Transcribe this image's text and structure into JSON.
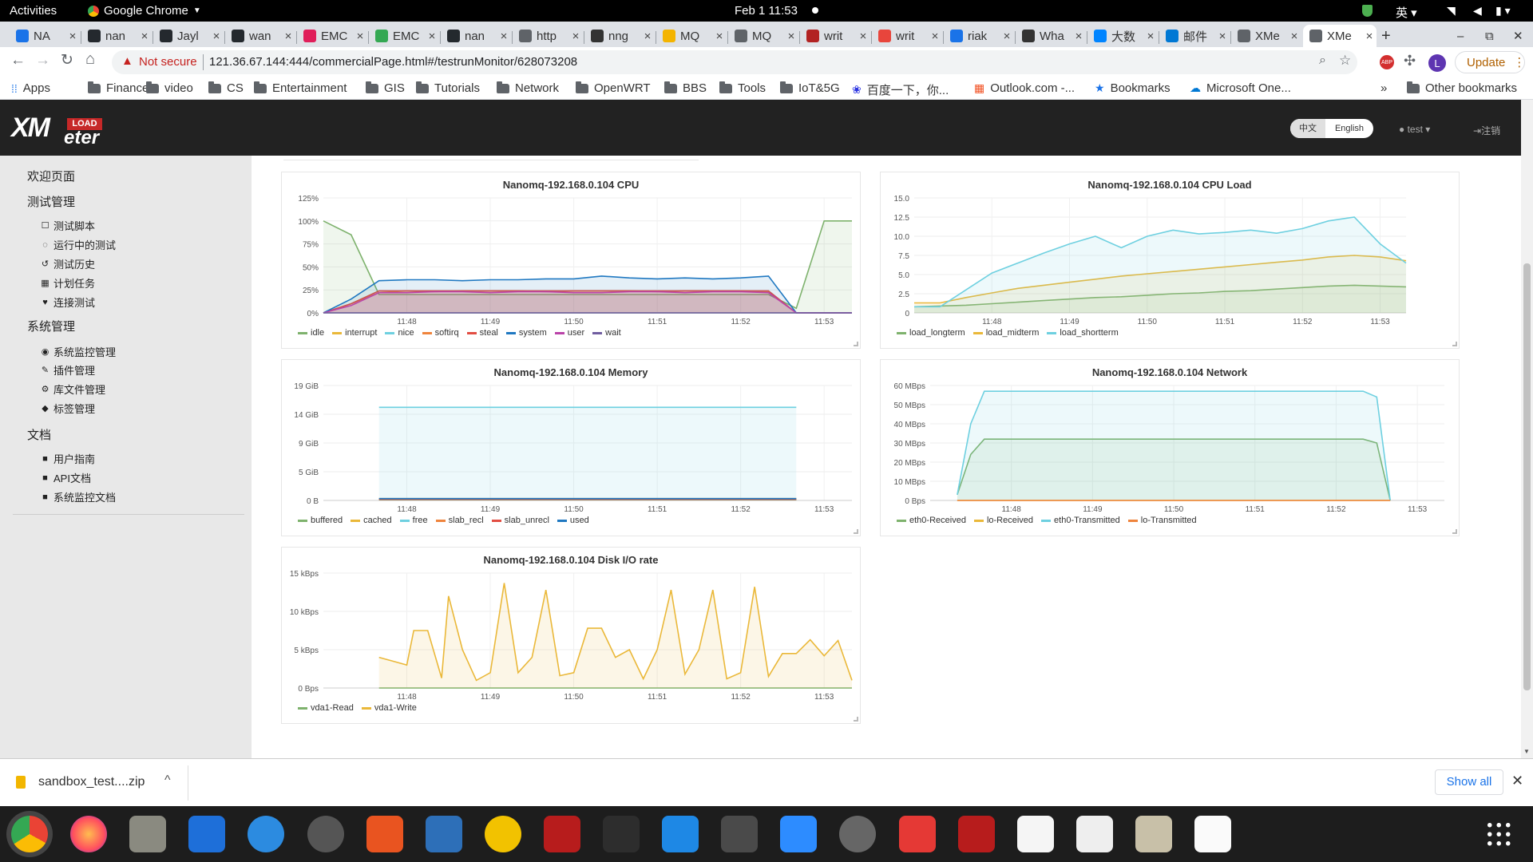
{
  "os": {
    "activities": "Activities",
    "app": "Google Chrome",
    "clock": "Feb 1  11:53",
    "lang": "英"
  },
  "tabs": [
    "NA",
    "nan",
    "Jayl",
    "wan",
    "EMC",
    "EMC",
    "nan",
    "http",
    "nng",
    "MQ",
    "MQ",
    "writ",
    "writ",
    "riak",
    "Wha",
    "大数",
    "邮件",
    "XMe",
    "XMe"
  ],
  "tab_favicon_colors": [
    "#1a73e8",
    "#24292e",
    "#24292e",
    "#24292e",
    "#e01e5a",
    "#34a853",
    "#24292e",
    "#5f6368",
    "#333",
    "#f4b400",
    "#5f6368",
    "#b22222",
    "#e8453c",
    "#1a73e8",
    "#333",
    "#0084ff",
    "#0078d4",
    "#5f6368",
    "#5f6368"
  ],
  "address": {
    "warning": "Not secure",
    "url": "121.36.67.144:444/commercialPage.html#/testrunMonitor/628073208",
    "update": "Update",
    "profile": "L"
  },
  "bookmarks": [
    {
      "label": "Apps",
      "icon": "apps-grid-icon"
    },
    {
      "label": "Finance",
      "icon": "folder-icon"
    },
    {
      "label": "video",
      "icon": "folder-icon"
    },
    {
      "label": "CS",
      "icon": "folder-icon"
    },
    {
      "label": "Entertainment",
      "icon": "folder-icon"
    },
    {
      "label": "GIS",
      "icon": "folder-icon"
    },
    {
      "label": "Tutorials",
      "icon": "folder-icon"
    },
    {
      "label": "Network",
      "icon": "folder-icon"
    },
    {
      "label": "OpenWRT",
      "icon": "folder-icon"
    },
    {
      "label": "BBS",
      "icon": "folder-icon"
    },
    {
      "label": "Tools",
      "icon": "folder-icon"
    },
    {
      "label": "IoT&5G",
      "icon": "folder-icon"
    },
    {
      "label": "百度一下，你...",
      "icon": "baidu-icon"
    },
    {
      "label": "Outlook.com -...",
      "icon": "microsoft-icon"
    },
    {
      "label": "Bookmarks",
      "icon": "star-icon"
    },
    {
      "label": "Microsoft One...",
      "icon": "onedrive-icon"
    }
  ],
  "other_bookmarks": "Other bookmarks",
  "header": {
    "logo_top": "LOAD",
    "logo_x": "XM",
    "logo_bottom": "eter",
    "lang_cn": "中文",
    "lang_en": "English",
    "user": "test",
    "logout": "注销"
  },
  "sidebar": [
    {
      "type": "h",
      "label": "欢迎页面"
    },
    {
      "type": "h",
      "label": "测试管理"
    },
    {
      "type": "i",
      "label": "测试脚本",
      "icon": "☐"
    },
    {
      "type": "i",
      "label": "运行中的测试",
      "icon": "◌"
    },
    {
      "type": "i",
      "label": "测试历史",
      "icon": "↺"
    },
    {
      "type": "i",
      "label": "计划任务",
      "icon": "▦"
    },
    {
      "type": "i",
      "label": "连接测试",
      "icon": "♥"
    },
    {
      "type": "h",
      "label": "系统管理"
    },
    {
      "type": "i",
      "label": "系统监控管理",
      "icon": "◉"
    },
    {
      "type": "i",
      "label": "插件管理",
      "icon": "✎"
    },
    {
      "type": "i",
      "label": "库文件管理",
      "icon": "⚙"
    },
    {
      "type": "i",
      "label": "标签管理",
      "icon": "◆"
    },
    {
      "type": "h",
      "label": "文档"
    },
    {
      "type": "i",
      "label": "用户指南",
      "icon": "■"
    },
    {
      "type": "i",
      "label": "API文档",
      "icon": "■"
    },
    {
      "type": "i",
      "label": "系统监控文档",
      "icon": "■"
    }
  ],
  "download": {
    "file": "sandbox_test....zip",
    "show_all": "Show all"
  },
  "chart_data": [
    {
      "id": "cpu",
      "type": "area",
      "title": "Nanomq-192.168.0.104 CPU",
      "x": [
        "11:47",
        "11:47:20",
        "11:47:40",
        "11:48",
        "11:48:20",
        "11:48:40",
        "11:49",
        "11:49:20",
        "11:49:40",
        "11:50",
        "11:50:20",
        "11:50:40",
        "11:51",
        "11:51:20",
        "11:51:40",
        "11:52",
        "11:52:20",
        "11:52:40",
        "11:53",
        "11:53:20"
      ],
      "xticks": [
        "11:48",
        "11:49",
        "11:50",
        "11:51",
        "11:52",
        "11:53"
      ],
      "yticks": [
        "0%",
        "25%",
        "50%",
        "75%",
        "100%",
        "125%"
      ],
      "ylim": [
        0,
        125
      ],
      "series": [
        {
          "name": "idle",
          "color": "#7eb26d",
          "values": [
            100,
            85,
            20,
            20,
            20,
            20,
            20,
            20,
            20,
            20,
            20,
            20,
            20,
            20,
            20,
            20,
            20,
            5,
            100,
            100
          ]
        },
        {
          "name": "interrupt",
          "color": "#eab839",
          "values": [
            0,
            0,
            0,
            0,
            0,
            0,
            0,
            0,
            0,
            0,
            0,
            0,
            0,
            0,
            0,
            0,
            0,
            0,
            0,
            0
          ]
        },
        {
          "name": "nice",
          "color": "#6ed0e0",
          "values": [
            0,
            0,
            0,
            0,
            0,
            0,
            0,
            0,
            0,
            0,
            0,
            0,
            0,
            0,
            0,
            0,
            0,
            0,
            0,
            0
          ]
        },
        {
          "name": "softirq",
          "color": "#ef843c",
          "values": [
            0,
            10,
            22,
            24,
            23,
            24,
            24,
            24,
            23,
            24,
            24,
            24,
            23,
            24,
            24,
            24,
            23,
            0,
            0,
            0
          ]
        },
        {
          "name": "steal",
          "color": "#e24d42",
          "values": [
            0,
            10,
            24,
            24,
            24,
            24,
            24,
            24,
            24,
            24,
            24,
            24,
            24,
            24,
            24,
            24,
            24,
            0,
            0,
            0
          ]
        },
        {
          "name": "system",
          "color": "#1f78c1",
          "values": [
            0,
            15,
            35,
            36,
            36,
            35,
            36,
            36,
            37,
            37,
            40,
            38,
            37,
            38,
            37,
            38,
            40,
            0,
            0,
            0
          ]
        },
        {
          "name": "user",
          "color": "#ba43a9",
          "values": [
            0,
            8,
            22,
            22,
            23,
            23,
            22,
            23,
            23,
            22,
            22,
            23,
            23,
            22,
            23,
            23,
            22,
            0,
            0,
            0
          ]
        },
        {
          "name": "wait",
          "color": "#705da0",
          "values": [
            0,
            0,
            0,
            0,
            0,
            0,
            0,
            0,
            0,
            0,
            0,
            0,
            0,
            0,
            0,
            0,
            0,
            0,
            0,
            0
          ]
        }
      ]
    },
    {
      "id": "load",
      "type": "area",
      "title": "Nanomq-192.168.0.104 CPU Load",
      "x": [
        "11:47",
        "11:47:20",
        "11:47:40",
        "11:48",
        "11:48:20",
        "11:48:40",
        "11:49",
        "11:49:20",
        "11:49:40",
        "11:50",
        "11:50:20",
        "11:50:40",
        "11:51",
        "11:51:20",
        "11:51:40",
        "11:52",
        "11:52:20",
        "11:52:40",
        "11:53",
        "11:53:20"
      ],
      "xticks": [
        "11:48",
        "11:49",
        "11:50",
        "11:51",
        "11:52",
        "11:53"
      ],
      "yticks": [
        "0",
        "2.5",
        "5.0",
        "7.5",
        "10.0",
        "12.5",
        "15.0"
      ],
      "ylim": [
        0,
        15
      ],
      "series": [
        {
          "name": "load_longterm",
          "color": "#7eb26d",
          "values": [
            0.8,
            0.9,
            1.0,
            1.2,
            1.4,
            1.6,
            1.8,
            2.0,
            2.1,
            2.3,
            2.5,
            2.6,
            2.8,
            2.9,
            3.1,
            3.3,
            3.5,
            3.6,
            3.5,
            3.4
          ]
        },
        {
          "name": "load_midterm",
          "color": "#eab839",
          "values": [
            1.3,
            1.3,
            2.0,
            2.6,
            3.2,
            3.6,
            4.0,
            4.4,
            4.8,
            5.1,
            5.4,
            5.7,
            6.0,
            6.3,
            6.6,
            6.9,
            7.3,
            7.5,
            7.3,
            6.8
          ]
        },
        {
          "name": "load_shortterm",
          "color": "#6ed0e0",
          "values": [
            0.8,
            0.8,
            3.0,
            5.2,
            6.5,
            7.8,
            9.0,
            10.0,
            8.5,
            10.0,
            10.8,
            10.3,
            10.5,
            10.8,
            10.4,
            11.0,
            12.0,
            12.5,
            9.0,
            6.5
          ]
        }
      ]
    },
    {
      "id": "mem",
      "type": "area",
      "title": "Nanomq-192.168.0.104 Memory",
      "x": [
        "11:47:40",
        "11:48",
        "11:48:20",
        "11:48:40",
        "11:49",
        "11:49:20",
        "11:49:40",
        "11:50",
        "11:50:20",
        "11:50:40",
        "11:51",
        "11:51:20",
        "11:51:40",
        "11:52",
        "11:52:20",
        "11:52:40"
      ],
      "xticks": [
        "11:48",
        "11:49",
        "11:50",
        "11:51",
        "11:52",
        "11:53"
      ],
      "yticks": [
        "0 B",
        "5 GiB",
        "9 GiB",
        "14 GiB",
        "19 GiB"
      ],
      "ylim": [
        0,
        19
      ],
      "series": [
        {
          "name": "buffered",
          "color": "#7eb26d",
          "values": [
            0.1,
            0.1,
            0.1,
            0.1,
            0.1,
            0.1,
            0.1,
            0.1,
            0.1,
            0.1,
            0.1,
            0.1,
            0.1,
            0.1,
            0.1,
            0.1
          ]
        },
        {
          "name": "cached",
          "color": "#eab839",
          "values": [
            0.3,
            0.3,
            0.3,
            0.3,
            0.3,
            0.3,
            0.3,
            0.3,
            0.3,
            0.3,
            0.3,
            0.3,
            0.3,
            0.3,
            0.3,
            0.3
          ]
        },
        {
          "name": "free",
          "color": "#6ed0e0",
          "values": [
            15.4,
            15.4,
            15.4,
            15.4,
            15.4,
            15.4,
            15.4,
            15.4,
            15.4,
            15.4,
            15.4,
            15.4,
            15.4,
            15.4,
            15.4,
            15.4
          ]
        },
        {
          "name": "slab_recl",
          "color": "#ef843c",
          "values": [
            0.2,
            0.2,
            0.2,
            0.2,
            0.2,
            0.2,
            0.2,
            0.2,
            0.2,
            0.2,
            0.2,
            0.2,
            0.2,
            0.2,
            0.2,
            0.2
          ]
        },
        {
          "name": "slab_unrecl",
          "color": "#e24d42",
          "values": [
            0.2,
            0.2,
            0.2,
            0.2,
            0.2,
            0.2,
            0.2,
            0.2,
            0.2,
            0.2,
            0.2,
            0.2,
            0.2,
            0.2,
            0.2,
            0.2
          ]
        },
        {
          "name": "used",
          "color": "#1f78c1",
          "values": [
            0.3,
            0.3,
            0.3,
            0.3,
            0.3,
            0.3,
            0.3,
            0.3,
            0.3,
            0.3,
            0.3,
            0.3,
            0.3,
            0.3,
            0.3,
            0.3
          ]
        }
      ]
    },
    {
      "id": "net",
      "type": "area",
      "title": "Nanomq-192.168.0.104 Network",
      "x": [
        "11:47:20",
        "11:47:30",
        "11:47:40",
        "11:48",
        "11:48:20",
        "11:48:40",
        "11:49",
        "11:49:20",
        "11:49:40",
        "11:50",
        "11:50:20",
        "11:50:40",
        "11:51",
        "11:51:20",
        "11:51:40",
        "11:52",
        "11:52:20",
        "11:52:30",
        "11:52:40"
      ],
      "xticks": [
        "11:48",
        "11:49",
        "11:50",
        "11:51",
        "11:52",
        "11:53"
      ],
      "yticks": [
        "0 Bps",
        "10 MBps",
        "20 MBps",
        "30 MBps",
        "40 MBps",
        "50 MBps",
        "60 MBps"
      ],
      "ylim": [
        0,
        60
      ],
      "series": [
        {
          "name": "eth0-Received",
          "color": "#7eb26d",
          "values": [
            3,
            24,
            32,
            32,
            32,
            32,
            32,
            32,
            32,
            32,
            32,
            32,
            32,
            32,
            32,
            32,
            32,
            30,
            0
          ]
        },
        {
          "name": "lo-Received",
          "color": "#eab839",
          "values": [
            0,
            0,
            0,
            0,
            0,
            0,
            0,
            0,
            0,
            0,
            0,
            0,
            0,
            0,
            0,
            0,
            0,
            0,
            0
          ]
        },
        {
          "name": "eth0-Transmitted",
          "color": "#6ed0e0",
          "values": [
            3,
            40,
            57,
            57,
            57,
            57,
            57,
            57,
            57,
            57,
            57,
            57,
            57,
            57,
            57,
            57,
            57,
            54,
            0
          ]
        },
        {
          "name": "lo-Transmitted",
          "color": "#ef843c",
          "values": [
            0,
            0,
            0,
            0,
            0,
            0,
            0,
            0,
            0,
            0,
            0,
            0,
            0,
            0,
            0,
            0,
            0,
            0,
            0
          ]
        }
      ]
    },
    {
      "id": "disk",
      "type": "area",
      "title": "Nanomq-192.168.0.104 Disk I/O rate",
      "x": [
        "11:47:40",
        "11:47:50",
        "11:48",
        "11:48:05",
        "11:48:15",
        "11:48:25",
        "11:48:30",
        "11:48:40",
        "11:48:50",
        "11:49",
        "11:49:10",
        "11:49:20",
        "11:49:30",
        "11:49:40",
        "11:49:50",
        "11:50",
        "11:50:10",
        "11:50:20",
        "11:50:30",
        "11:50:40",
        "11:50:50",
        "11:51",
        "11:51:10",
        "11:51:20",
        "11:51:30",
        "11:51:40",
        "11:51:50",
        "11:52",
        "11:52:10",
        "11:52:20",
        "11:52:30",
        "11:52:40",
        "11:52:50",
        "11:53",
        "11:53:10",
        "11:53:20"
      ],
      "xticks": [
        "11:48",
        "11:49",
        "11:50",
        "11:51",
        "11:52",
        "11:53"
      ],
      "yticks": [
        "0 Bps",
        "5 kBps",
        "10 kBps",
        "15 kBps"
      ],
      "ylim": [
        0,
        15
      ],
      "series": [
        {
          "name": "vda1-Read",
          "color": "#7eb26d",
          "values": [
            0,
            0,
            0,
            0,
            0,
            0,
            0,
            0,
            0,
            0,
            0,
            0,
            0,
            0,
            0,
            0,
            0,
            0,
            0,
            0,
            0,
            0,
            0,
            0,
            0,
            0,
            0,
            0,
            0,
            0,
            0,
            0,
            0,
            0,
            0,
            0
          ]
        },
        {
          "name": "vda1-Write",
          "color": "#eab839",
          "values": [
            4,
            3.5,
            3,
            7.5,
            7.5,
            1.3,
            12,
            5,
            1,
            2,
            13.7,
            2,
            4,
            12.8,
            1.6,
            2,
            7.8,
            7.8,
            4,
            5,
            1.2,
            5,
            12.8,
            1.8,
            5,
            12.8,
            1.2,
            2,
            13.2,
            1.5,
            4.5,
            4.5,
            6.3,
            4.2,
            6.2,
            1
          ]
        }
      ]
    }
  ]
}
